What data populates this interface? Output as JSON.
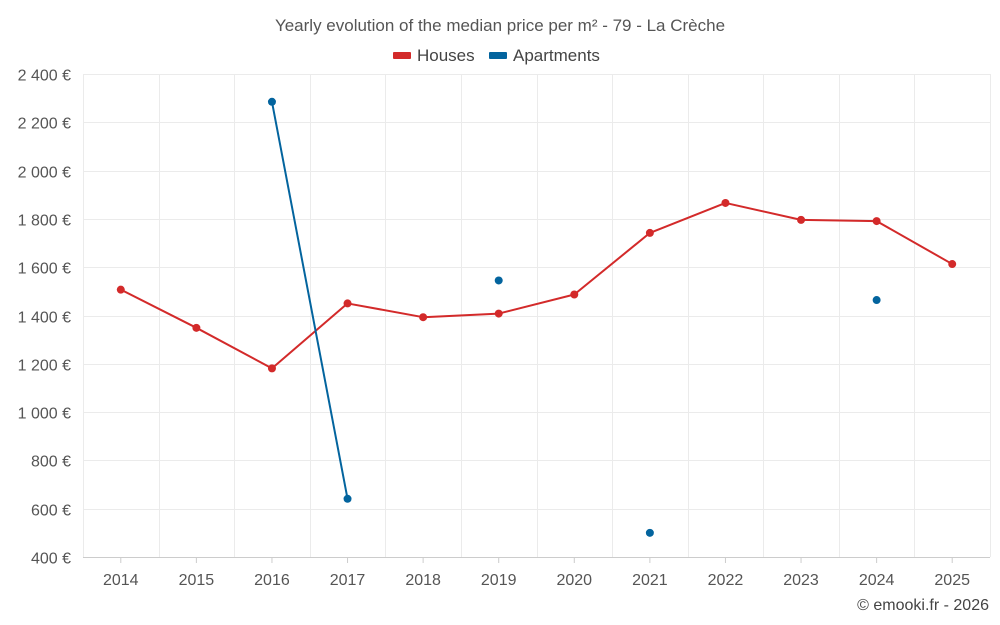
{
  "chart_data": {
    "type": "line",
    "title": "Yearly evolution of the median price per m² - 79 - La Crèche",
    "categories": [
      "2014",
      "2015",
      "2016",
      "2017",
      "2018",
      "2019",
      "2020",
      "2021",
      "2022",
      "2023",
      "2024",
      "2025"
    ],
    "ylim": [
      400,
      2400
    ],
    "yticks": [
      400,
      600,
      800,
      1000,
      1200,
      1400,
      1600,
      1800,
      2000,
      2200,
      2400
    ],
    "ytick_labels": [
      "400 €",
      "600 €",
      "800 €",
      "1 000 €",
      "1 200 €",
      "1 400 €",
      "1 600 €",
      "1 800 €",
      "2 000 €",
      "2 200 €",
      "2 400 €"
    ],
    "xlabel": "",
    "ylabel": "",
    "grid": true,
    "legend_position": "top-center",
    "series": [
      {
        "name": "Houses",
        "color": "#d32a2a",
        "values": [
          1507,
          1349,
          1181,
          1450,
          1393,
          1408,
          1487,
          1742,
          1866,
          1796,
          1791,
          1613
        ]
      },
      {
        "name": "Apartments",
        "color": "#03649e",
        "values": [
          null,
          null,
          2285,
          641,
          null,
          1545,
          null,
          500,
          null,
          null,
          1464,
          null
        ]
      }
    ]
  },
  "credit": "© emooki.fr - 2026"
}
